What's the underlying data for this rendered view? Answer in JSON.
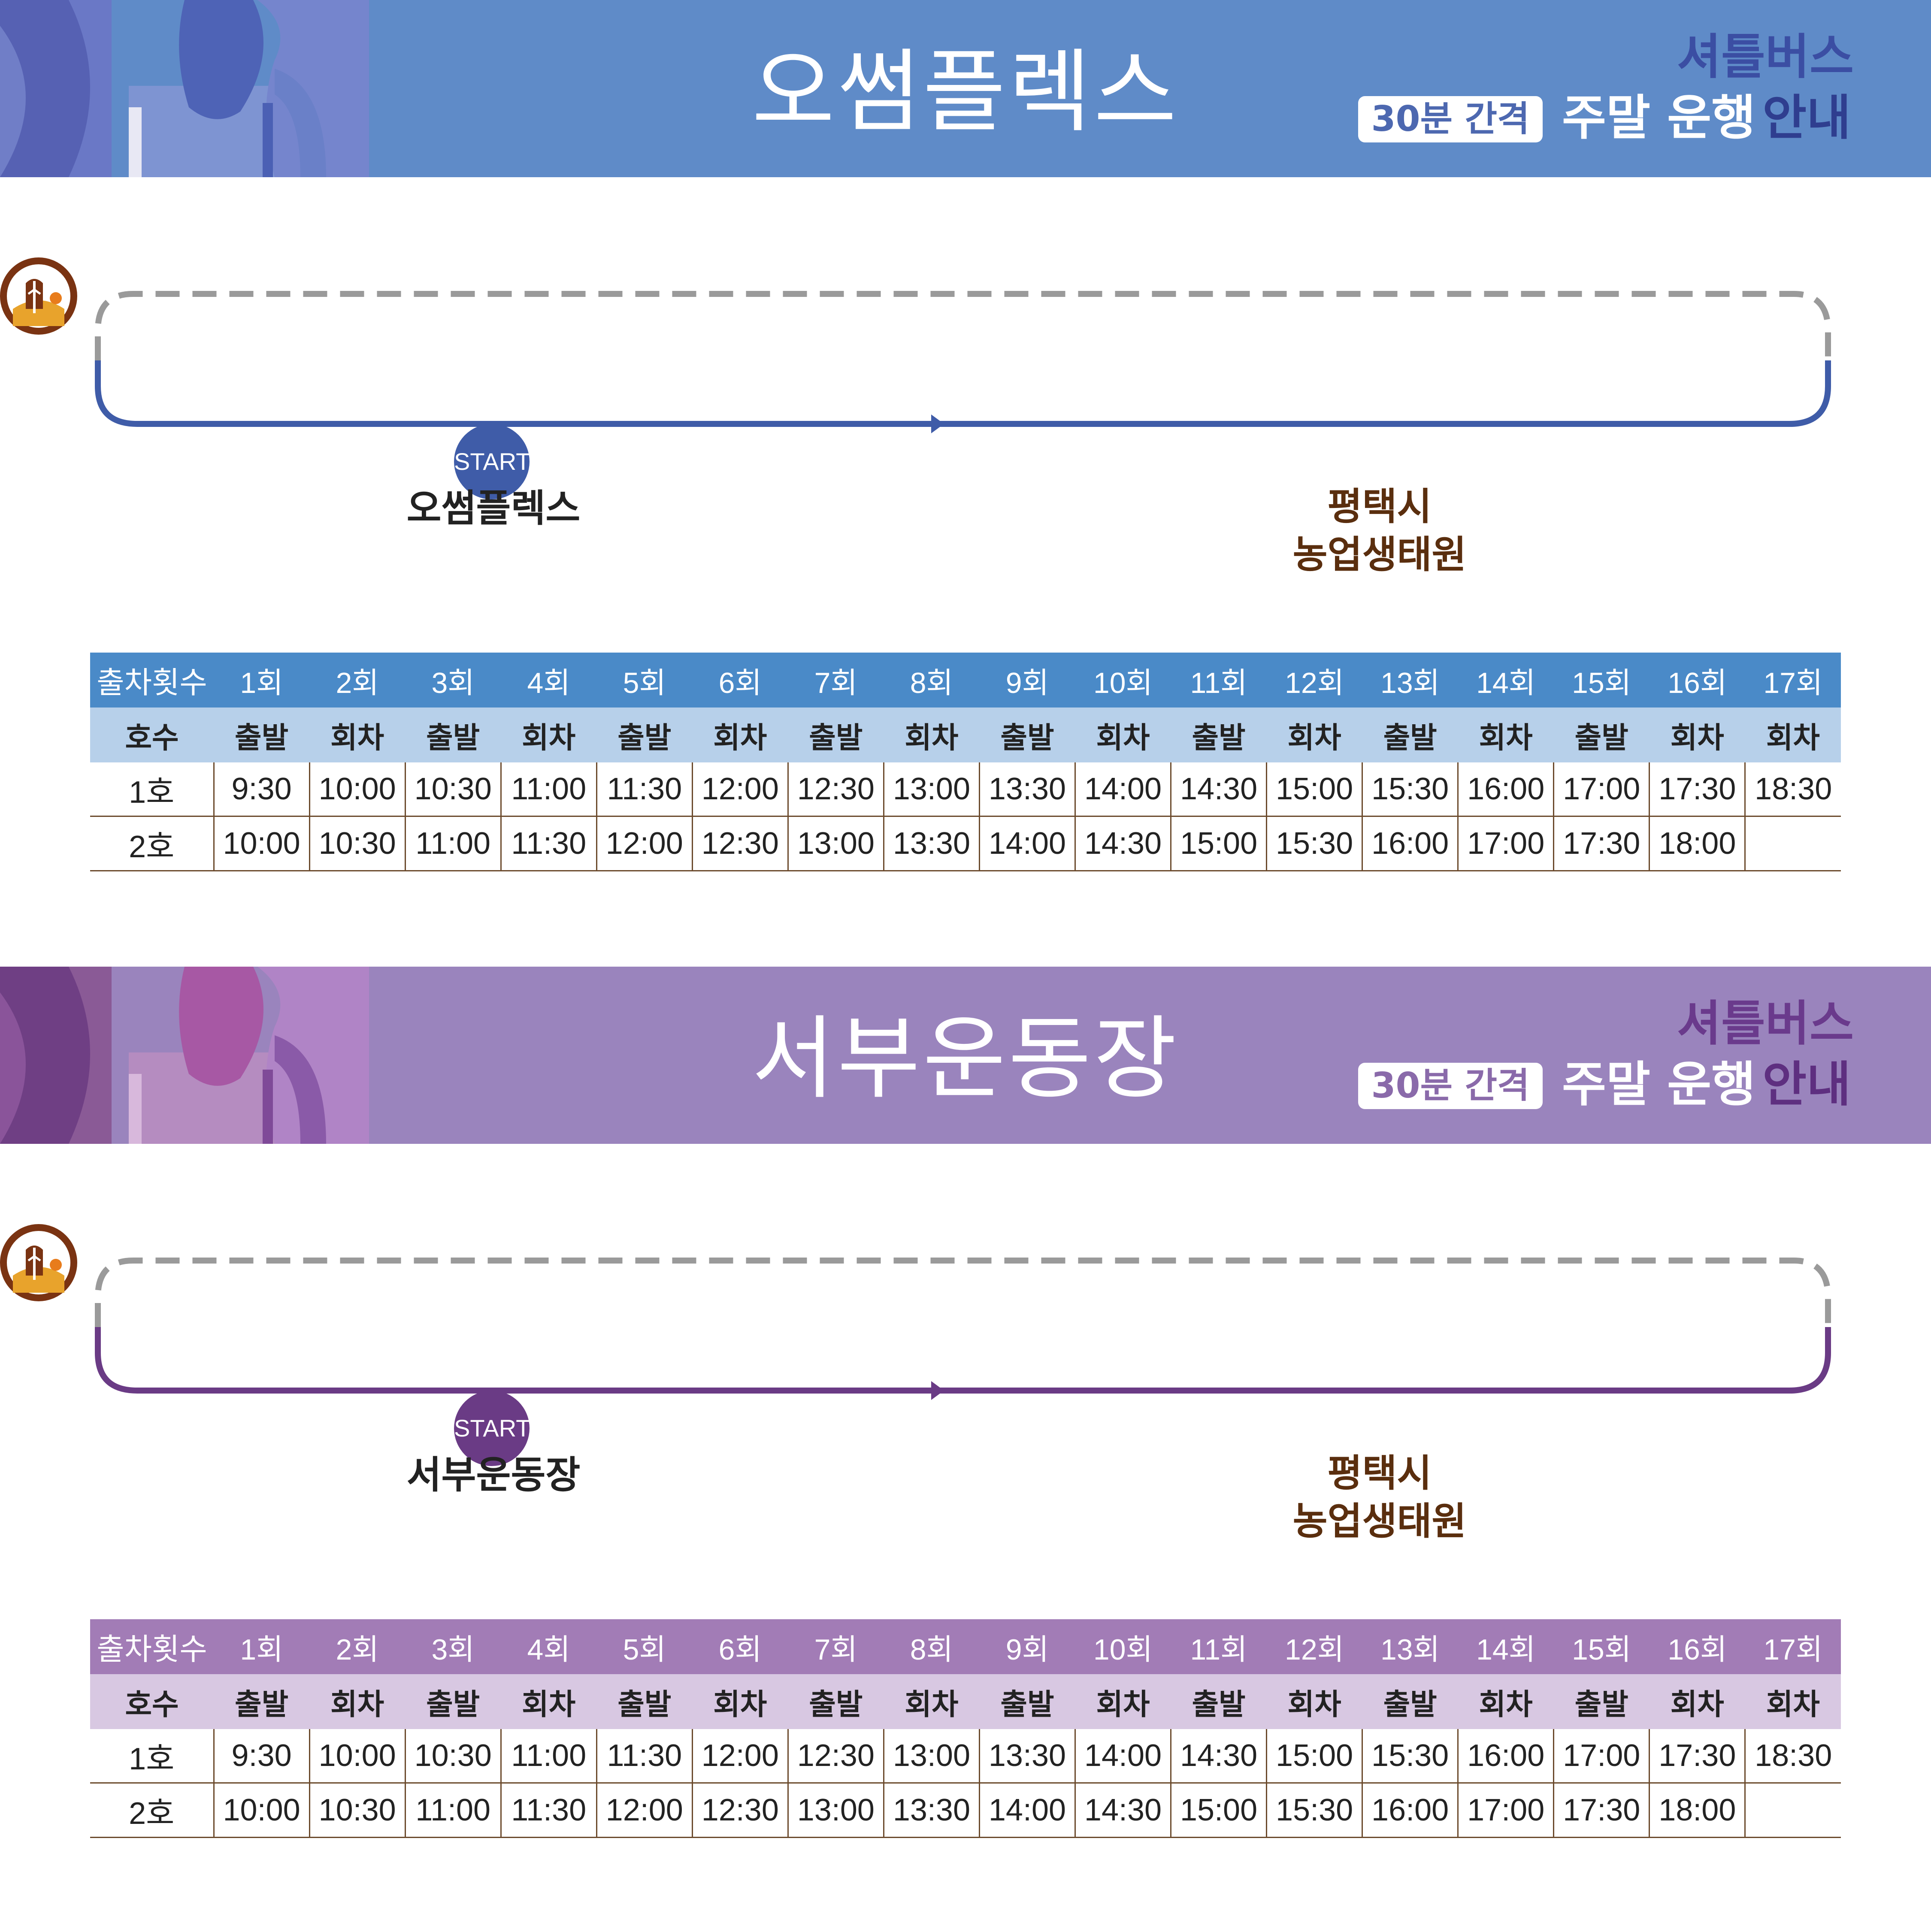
{
  "sections": [
    {
      "title": "오썸플렉스",
      "shuttle": "셔틀버스",
      "interval": "30분 간격",
      "notice_main": "주말 운행",
      "notice_accent": "안내",
      "start_badge": "START",
      "start_name": "오썸플렉스",
      "dest_line1": "평택시",
      "dest_line2": "농업생태원",
      "theme": {
        "primary": "#5f8bc8",
        "route_line": "#3f5ca8",
        "table_head": "#4a8ac8",
        "table_sub": "#b7d0ea"
      },
      "table": {
        "header": [
          "출차횟수",
          "1회",
          "2회",
          "3회",
          "4회",
          "5회",
          "6회",
          "7회",
          "8회",
          "9회",
          "10회",
          "11회",
          "12회",
          "13회",
          "14회",
          "15회",
          "16회",
          "17회"
        ],
        "types": [
          "호수",
          "출발",
          "회차",
          "출발",
          "회차",
          "출발",
          "회차",
          "출발",
          "회차",
          "출발",
          "회차",
          "출발",
          "회차",
          "출발",
          "회차",
          "출발",
          "회차",
          "회차"
        ],
        "bus1": [
          "1호",
          "9:30",
          "10:00",
          "10:30",
          "11:00",
          "11:30",
          "12:00",
          "12:30",
          "13:00",
          "13:30",
          "14:00",
          "14:30",
          "15:00",
          "15:30",
          "16:00",
          "17:00",
          "17:30",
          "18:30"
        ],
        "bus2": [
          "2호",
          "10:00",
          "10:30",
          "11:00",
          "11:30",
          "12:00",
          "12:30",
          "13:00",
          "13:30",
          "14:00",
          "14:30",
          "15:00",
          "15:30",
          "16:00",
          "17:00",
          "17:30",
          "18:00",
          ""
        ]
      }
    },
    {
      "title": "서부운동장",
      "shuttle": "셔틀버스",
      "interval": "30분 간격",
      "notice_main": "주말 운행",
      "notice_accent": "안내",
      "start_badge": "START",
      "start_name": "서부운동장",
      "dest_line1": "평택시",
      "dest_line2": "농업생태원",
      "theme": {
        "primary": "#9a84bd",
        "route_line": "#6a3b85",
        "table_head": "#a27cb6",
        "table_sub": "#d8c8e2"
      },
      "table": {
        "header": [
          "출차횟수",
          "1회",
          "2회",
          "3회",
          "4회",
          "5회",
          "6회",
          "7회",
          "8회",
          "9회",
          "10회",
          "11회",
          "12회",
          "13회",
          "14회",
          "15회",
          "16회",
          "17회"
        ],
        "types": [
          "호수",
          "출발",
          "회차",
          "출발",
          "회차",
          "출발",
          "회차",
          "출발",
          "회차",
          "출발",
          "회차",
          "출발",
          "회차",
          "출발",
          "회차",
          "출발",
          "회차",
          "회차"
        ],
        "bus1": [
          "1호",
          "9:30",
          "10:00",
          "10:30",
          "11:00",
          "11:30",
          "12:00",
          "12:30",
          "13:00",
          "13:30",
          "14:00",
          "14:30",
          "15:00",
          "15:30",
          "16:00",
          "17:00",
          "17:30",
          "18:30"
        ],
        "bus2": [
          "2호",
          "10:00",
          "10:30",
          "11:00",
          "11:30",
          "12:00",
          "12:30",
          "13:00",
          "13:30",
          "14:00",
          "14:30",
          "15:00",
          "15:30",
          "16:00",
          "17:00",
          "17:30",
          "18:00",
          ""
        ]
      }
    }
  ]
}
